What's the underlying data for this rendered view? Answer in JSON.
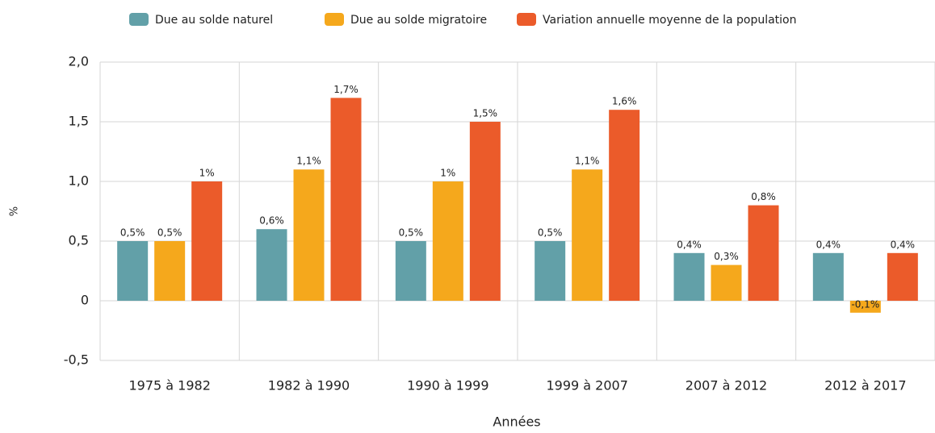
{
  "chart_data": {
    "type": "bar",
    "categories": [
      "1975 à 1982",
      "1982 à 1990",
      "1990 à 1999",
      "1999 à 2007",
      "2007 à 2012",
      "2012 à 2017"
    ],
    "series": [
      {
        "name": "Due au solde naturel",
        "color": "#62a0a8",
        "values": [
          0.5,
          0.6,
          0.5,
          0.5,
          0.4,
          0.4
        ],
        "value_labels": [
          "0,5%",
          "0,6%",
          "0,5%",
          "0,5%",
          "0,4%",
          "0,4%"
        ]
      },
      {
        "name": "Due au solde migratoire",
        "color": "#f5a81c",
        "values": [
          0.5,
          1.1,
          1,
          1.1,
          0.3,
          -0.1
        ],
        "value_labels": [
          "0,5%",
          "1,1%",
          "1%",
          "1,1%",
          "0,3%",
          "-0,1%"
        ]
      },
      {
        "name": "Variation annuelle moyenne de la population",
        "color": "#eb5b2a",
        "values": [
          1,
          1.7,
          1.5,
          1.6,
          0.8,
          0.4
        ],
        "value_labels": [
          "1%",
          "1,7%",
          "1,5%",
          "1,6%",
          "0,8%",
          "0,4%"
        ]
      }
    ],
    "ylabel": "%",
    "xlabel": "Années",
    "ylim": [
      -0.5,
      2.0
    ],
    "yticks": [
      {
        "value": -0.5,
        "label": "-0,5"
      },
      0,
      {
        "value": 0.5,
        "label": "0,5"
      },
      {
        "value": 1.0,
        "label": "1,0"
      },
      {
        "value": 1.5,
        "label": "1,5"
      },
      {
        "value": 2.0,
        "label": "2,0"
      }
    ],
    "grid": true
  }
}
